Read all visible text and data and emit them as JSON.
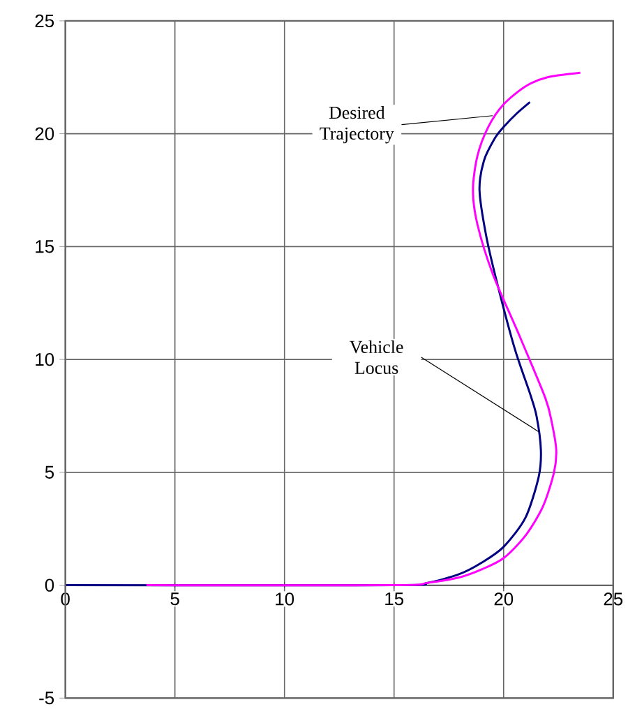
{
  "chart_data": {
    "type": "line",
    "xlim": [
      0,
      25
    ],
    "ylim": [
      -5,
      25
    ],
    "xticks": [
      0,
      5,
      10,
      15,
      20,
      25
    ],
    "yticks": [
      -5,
      0,
      5,
      10,
      15,
      20,
      25
    ],
    "grid": true,
    "marker": "none",
    "line_style": "solid",
    "series": [
      {
        "color": "#000080",
        "x": [
          0,
          15,
          16.5,
          18,
          19,
          20,
          21,
          21.6,
          21.7,
          21.5,
          21.2,
          20.5,
          19.7,
          19.2,
          18.9,
          19.1,
          19.6,
          20.0,
          20.6,
          21.2
        ],
        "values": [
          0,
          0,
          0.1,
          0.5,
          1,
          1.7,
          3,
          4.8,
          6,
          7.5,
          8.5,
          10.5,
          13.4,
          15.5,
          17.5,
          18.8,
          19.8,
          20.3,
          20.9,
          21.4
        ]
      },
      {
        "color": "#ff00ff",
        "x": [
          3.7,
          15,
          16.5,
          18,
          19,
          20,
          21,
          21.8,
          22.3,
          22.4,
          22.2,
          21.9,
          20.7,
          19.5,
          18.8,
          18.6,
          18.8,
          19.3,
          20.0,
          21,
          22,
          23.5
        ],
        "values": [
          0,
          0,
          0.1,
          0.35,
          0.7,
          1.2,
          2.2,
          3.5,
          5,
          6,
          7.2,
          8.3,
          11.1,
          13.8,
          16,
          17.5,
          19,
          20.3,
          21.3,
          22.1,
          22.5,
          22.7
        ]
      }
    ],
    "annotations": [
      {
        "text": "Desired Trajectory",
        "x": 19.5,
        "y": 20.8
      },
      {
        "text": "Vehicle Locus",
        "x": 21.6,
        "y": 6.8
      }
    ]
  }
}
